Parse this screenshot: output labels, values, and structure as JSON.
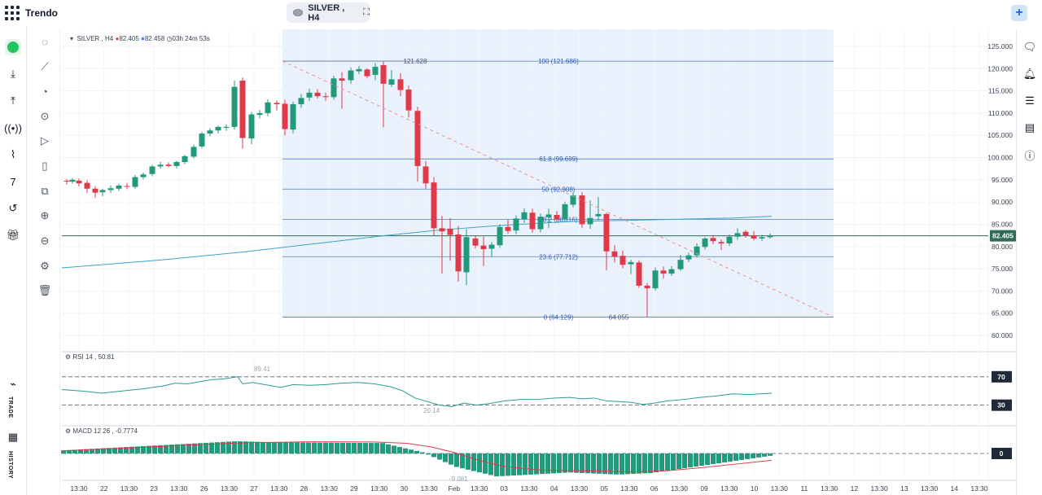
{
  "app": {
    "name": "Trendo"
  },
  "symbol_pill": {
    "label": "SILVER , H4"
  },
  "add_button": {
    "label": "+"
  },
  "legend": {
    "main": {
      "symbol": "SILVER , H4",
      "bid": "82.405",
      "ask": "82.458",
      "timer": "03h 24m 53s"
    },
    "rsi": "RSI 14 , 50.81",
    "macd": "MACD 12  26 , -0.7774"
  },
  "left_rail": {
    "trade_label": "TRADE",
    "history_label": "HISTORY"
  },
  "price_axis": {
    "ticks": [
      "125.000",
      "120.000",
      "115.000",
      "110.000",
      "105.000",
      "100.000",
      "95.000",
      "90.000",
      "85.000",
      "80.000",
      "75.000",
      "70.000",
      "65.000",
      "60.000"
    ],
    "current_price": "82.405"
  },
  "rsi_axis": {
    "upper": "70",
    "lower": "30",
    "peak_label": "89.41",
    "trough_label": "20.14"
  },
  "macd_axis": {
    "zero": "0",
    "min_label": "-9.081"
  },
  "fib": {
    "levels": [
      {
        "label": "100 (121.686)",
        "value": 121.686
      },
      {
        "label": "61.8 (99.699)",
        "value": 99.699
      },
      {
        "label": "50 (92.908)",
        "value": 92.908
      },
      {
        "label": "38.2 (86.116)",
        "value": 86.116
      },
      {
        "label": "23.6 (77.712)",
        "value": 77.712
      },
      {
        "label": "0 (64.129)",
        "value": 64.129
      }
    ],
    "high_label": "121.628",
    "low_label": "64.055"
  },
  "time_axis": {
    "labels": [
      "13:30",
      "22",
      "13:30",
      "23",
      "13:30",
      "26",
      "13:30",
      "27",
      "13:30",
      "28",
      "13:30",
      "29",
      "13:30",
      "30",
      "13:30",
      "Feb",
      "13:30",
      "03",
      "13:30",
      "04",
      "13:30",
      "05",
      "13:30",
      "06",
      "13:30",
      "09",
      "13:30",
      "10",
      "13:30",
      "11",
      "13:30",
      "12",
      "13:30",
      "13",
      "13:30",
      "14",
      "13:30"
    ]
  },
  "colors": {
    "up": "#22997a",
    "down": "#e0394a",
    "fib_zone": "#e8f0fd",
    "fib_line": "#2f5fb3",
    "ma_line": "#3aa3c9",
    "rsi_line": "#2a9d8f",
    "macd_hist": "#229a7e",
    "macd_signal": "#e0394a"
  }
}
